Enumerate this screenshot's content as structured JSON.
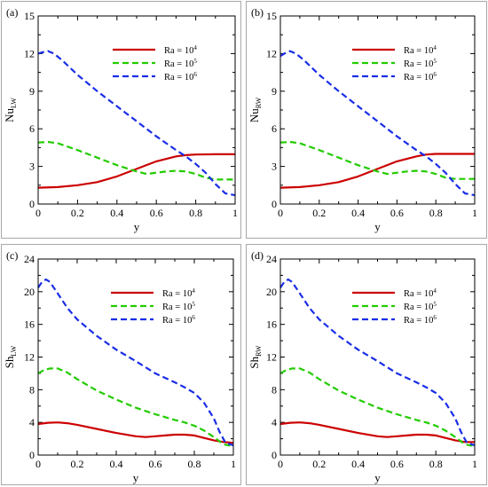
{
  "chart_data": [
    {
      "type": "line",
      "panel_label": "(a)",
      "xlabel": "y",
      "ylabel_main": "Nu",
      "ylabel_sub": "LW",
      "xlim": [
        0,
        1
      ],
      "ylim": [
        0,
        15
      ],
      "xticks": [
        "0",
        "0.2",
        "0.4",
        "0.6",
        "0.8",
        "1"
      ],
      "yticks": [
        "0",
        "3",
        "6",
        "9",
        "12",
        "15"
      ],
      "legend_placement": "top-right",
      "series": [
        {
          "name": "Ra = 10",
          "exp": "4",
          "color": "#cc0000",
          "dash": "solid",
          "x": [
            0,
            0.1,
            0.2,
            0.3,
            0.4,
            0.5,
            0.6,
            0.7,
            0.75,
            0.8,
            0.9,
            1.0
          ],
          "y": [
            1.3,
            1.35,
            1.5,
            1.75,
            2.2,
            2.8,
            3.4,
            3.8,
            3.9,
            3.95,
            3.97,
            3.97
          ]
        },
        {
          "name": "Ra = 10",
          "exp": "5",
          "color": "#22cc00",
          "dash": "dashed",
          "x": [
            0,
            0.05,
            0.1,
            0.2,
            0.3,
            0.4,
            0.5,
            0.55,
            0.6,
            0.65,
            0.7,
            0.75,
            0.8,
            0.85,
            0.9,
            1.0
          ],
          "y": [
            4.9,
            4.95,
            4.85,
            4.3,
            3.7,
            3.1,
            2.6,
            2.4,
            2.5,
            2.6,
            2.65,
            2.6,
            2.4,
            2.1,
            1.95,
            1.95
          ]
        },
        {
          "name": "Ra = 10",
          "exp": "6",
          "color": "#1a2ee6",
          "dash": "dashed",
          "x": [
            0,
            0.02,
            0.05,
            0.08,
            0.12,
            0.2,
            0.3,
            0.4,
            0.5,
            0.6,
            0.7,
            0.75,
            0.8,
            0.85,
            0.9,
            0.95,
            1.0
          ],
          "y": [
            12.0,
            12.1,
            12.2,
            12.0,
            11.5,
            10.3,
            9.0,
            7.8,
            6.6,
            5.4,
            4.3,
            3.8,
            3.2,
            2.5,
            1.6,
            0.85,
            0.7
          ]
        }
      ]
    },
    {
      "type": "line",
      "panel_label": "(b)",
      "xlabel": "y",
      "ylabel_main": "Nu",
      "ylabel_sub": "RW",
      "xlim": [
        0,
        1
      ],
      "ylim": [
        0,
        15
      ],
      "xticks": [
        "0",
        "0.2",
        "0.4",
        "0.6",
        "0.8",
        "1"
      ],
      "yticks": [
        "0",
        "3",
        "6",
        "9",
        "12",
        "15"
      ],
      "legend_placement": "top-right",
      "series": [
        {
          "name": "Ra = 10",
          "exp": "4",
          "color": "#cc0000",
          "dash": "solid",
          "x": [
            0,
            0.1,
            0.2,
            0.3,
            0.4,
            0.5,
            0.6,
            0.7,
            0.75,
            0.8,
            0.9,
            1.0
          ],
          "y": [
            1.3,
            1.35,
            1.5,
            1.75,
            2.2,
            2.8,
            3.4,
            3.8,
            3.95,
            4.0,
            4.0,
            4.0
          ]
        },
        {
          "name": "Ra = 10",
          "exp": "5",
          "color": "#22cc00",
          "dash": "dashed",
          "x": [
            0,
            0.05,
            0.1,
            0.2,
            0.3,
            0.4,
            0.5,
            0.55,
            0.6,
            0.65,
            0.7,
            0.75,
            0.8,
            0.85,
            0.9,
            1.0
          ],
          "y": [
            4.9,
            4.95,
            4.85,
            4.3,
            3.7,
            3.1,
            2.6,
            2.4,
            2.5,
            2.6,
            2.65,
            2.6,
            2.4,
            2.1,
            2.0,
            2.0
          ]
        },
        {
          "name": "Ra = 10",
          "exp": "6",
          "color": "#1a2ee6",
          "dash": "dashed",
          "x": [
            0,
            0.02,
            0.05,
            0.08,
            0.12,
            0.2,
            0.3,
            0.4,
            0.5,
            0.6,
            0.7,
            0.75,
            0.8,
            0.85,
            0.9,
            0.95,
            1.0
          ],
          "y": [
            11.8,
            12.0,
            12.2,
            12.0,
            11.5,
            10.3,
            9.0,
            7.8,
            6.6,
            5.4,
            4.3,
            3.8,
            3.2,
            2.5,
            1.6,
            0.85,
            0.7
          ]
        }
      ]
    },
    {
      "type": "line",
      "panel_label": "(c)",
      "xlabel": "y",
      "ylabel_main": "Sh",
      "ylabel_sub": "LW",
      "xlim": [
        0,
        1
      ],
      "ylim": [
        0,
        24
      ],
      "xticks": [
        "0",
        "0.2",
        "0.4",
        "0.6",
        "0.8",
        "1"
      ],
      "yticks": [
        "0",
        "4",
        "8",
        "12",
        "16",
        "20",
        "24"
      ],
      "legend_placement": "top-right",
      "series": [
        {
          "name": "Ra = 10",
          "exp": "4",
          "color": "#cc0000",
          "dash": "solid",
          "x": [
            0,
            0.05,
            0.1,
            0.15,
            0.2,
            0.3,
            0.4,
            0.5,
            0.55,
            0.6,
            0.65,
            0.7,
            0.75,
            0.8,
            0.85,
            0.9,
            0.95,
            1.0
          ],
          "y": [
            3.8,
            3.95,
            4.0,
            3.9,
            3.7,
            3.2,
            2.7,
            2.3,
            2.2,
            2.3,
            2.4,
            2.5,
            2.5,
            2.4,
            2.1,
            1.8,
            1.6,
            1.5
          ]
        },
        {
          "name": "Ra = 10",
          "exp": "5",
          "color": "#22cc00",
          "dash": "dashed",
          "x": [
            0,
            0.03,
            0.06,
            0.1,
            0.15,
            0.2,
            0.3,
            0.4,
            0.5,
            0.6,
            0.7,
            0.75,
            0.8,
            0.85,
            0.9,
            0.95,
            1.0
          ],
          "y": [
            10.0,
            10.4,
            10.6,
            10.6,
            10.1,
            9.3,
            7.9,
            6.8,
            5.8,
            5.0,
            4.3,
            4.0,
            3.6,
            3.0,
            2.2,
            1.3,
            1.1
          ]
        },
        {
          "name": "Ra = 10",
          "exp": "6",
          "color": "#1a2ee6",
          "dash": "dashed",
          "x": [
            0,
            0.02,
            0.04,
            0.06,
            0.1,
            0.15,
            0.2,
            0.3,
            0.4,
            0.5,
            0.6,
            0.7,
            0.75,
            0.8,
            0.85,
            0.9,
            0.93,
            0.96,
            1.0
          ],
          "y": [
            20.5,
            21.2,
            21.5,
            21.2,
            19.8,
            18.0,
            16.6,
            14.6,
            12.9,
            11.5,
            10.0,
            8.9,
            8.3,
            7.6,
            6.4,
            4.5,
            2.8,
            1.5,
            1.2
          ]
        }
      ]
    },
    {
      "type": "line",
      "panel_label": "(d)",
      "xlabel": "y",
      "ylabel_main": "Sh",
      "ylabel_sub": "RW",
      "xlim": [
        0,
        1
      ],
      "ylim": [
        0,
        24
      ],
      "xticks": [
        "0",
        "0.2",
        "0.4",
        "0.6",
        "0.8",
        "1"
      ],
      "yticks": [
        "0",
        "4",
        "8",
        "12",
        "16",
        "20",
        "24"
      ],
      "legend_placement": "top-right",
      "series": [
        {
          "name": "Ra = 10",
          "exp": "4",
          "color": "#cc0000",
          "dash": "solid",
          "x": [
            0,
            0.05,
            0.1,
            0.15,
            0.2,
            0.3,
            0.4,
            0.5,
            0.55,
            0.6,
            0.65,
            0.7,
            0.75,
            0.8,
            0.85,
            0.9,
            0.95,
            1.0
          ],
          "y": [
            3.8,
            3.95,
            4.0,
            3.9,
            3.7,
            3.2,
            2.7,
            2.3,
            2.2,
            2.3,
            2.4,
            2.5,
            2.5,
            2.4,
            2.1,
            1.8,
            1.6,
            1.6
          ]
        },
        {
          "name": "Ra = 10",
          "exp": "5",
          "color": "#22cc00",
          "dash": "dashed",
          "x": [
            0,
            0.03,
            0.06,
            0.1,
            0.15,
            0.2,
            0.3,
            0.4,
            0.5,
            0.6,
            0.7,
            0.75,
            0.8,
            0.85,
            0.9,
            0.95,
            1.0
          ],
          "y": [
            10.0,
            10.4,
            10.6,
            10.6,
            10.1,
            9.3,
            7.9,
            6.8,
            5.8,
            5.0,
            4.3,
            4.0,
            3.6,
            3.0,
            2.2,
            1.3,
            1.1
          ]
        },
        {
          "name": "Ra = 10",
          "exp": "6",
          "color": "#1a2ee6",
          "dash": "dashed",
          "x": [
            0,
            0.02,
            0.04,
            0.06,
            0.1,
            0.15,
            0.2,
            0.3,
            0.4,
            0.5,
            0.6,
            0.7,
            0.75,
            0.8,
            0.85,
            0.9,
            0.93,
            0.96,
            1.0
          ],
          "y": [
            20.5,
            21.2,
            21.5,
            21.2,
            19.8,
            18.0,
            16.6,
            14.6,
            12.9,
            11.5,
            10.0,
            8.9,
            8.3,
            7.6,
            6.4,
            4.5,
            2.8,
            1.5,
            1.2
          ]
        }
      ]
    }
  ]
}
